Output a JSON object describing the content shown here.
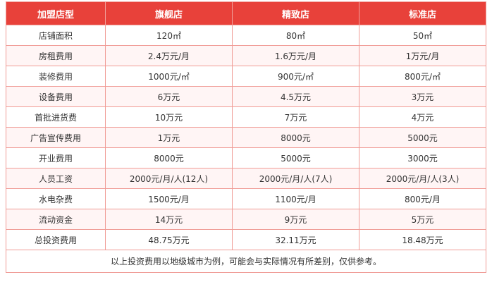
{
  "table": {
    "headers": [
      "加盟店型",
      "旗舰店",
      "精致店",
      "标准店"
    ],
    "rows": [
      [
        "店铺面积",
        "120㎡",
        "80㎡",
        "50㎡"
      ],
      [
        "房租费用",
        "2.4万元/月",
        "1.6万元/月",
        "1万元/月"
      ],
      [
        "装修费用",
        "1000元/㎡",
        "900元/㎡",
        "800元/㎡"
      ],
      [
        "设备费用",
        "6万元",
        "4.5万元",
        "3万元"
      ],
      [
        "首批进货费",
        "10万元",
        "7万元",
        "4万元"
      ],
      [
        "广告宣传费用",
        "1万元",
        "8000元",
        "5000元"
      ],
      [
        "开业费用",
        "8000元",
        "5000元",
        "3000元"
      ],
      [
        "人员工资",
        "2000元/月/人(12人)",
        "2000元/月/人(7人)",
        "2000元/月/人(3人)"
      ],
      [
        "水电杂费",
        "1500元/月",
        "1100元/月",
        "800元/月"
      ],
      [
        "流动资金",
        "14万元",
        "9万元",
        "5万元"
      ],
      [
        "总投资费用",
        "48.75万元",
        "32.11万元",
        "18.48万元"
      ]
    ],
    "note": "以上投资费用以地级城市为例，可能会与实际情况有所差别，仅供参考。"
  },
  "colors": {
    "header_bg": "#e8413a",
    "header_text": "#ffffff",
    "border": "#f09c96",
    "text": "#333333"
  }
}
